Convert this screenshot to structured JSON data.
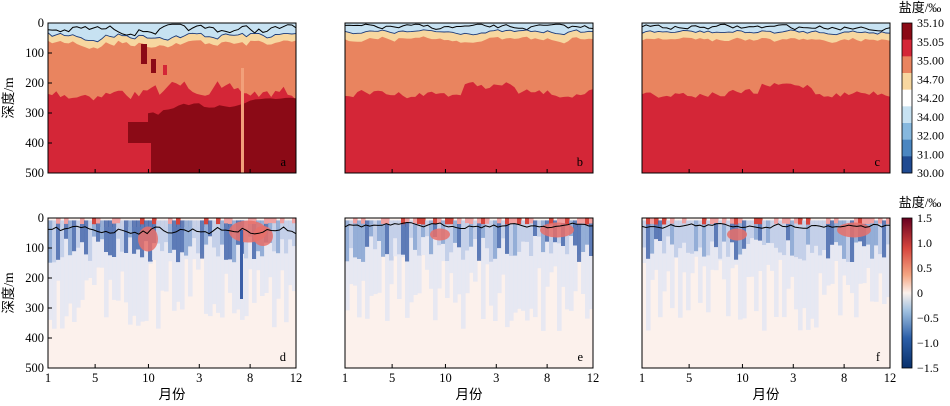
{
  "chart_data": [
    {
      "type": "heatmap",
      "panels": [
        "a",
        "b",
        "c"
      ],
      "ylabel": "深度/m",
      "yticks": [
        0,
        100,
        200,
        300,
        400,
        500
      ],
      "ylim": [
        500,
        0
      ],
      "colorbar": {
        "title": "盐度/‰",
        "ticks": [
          "35.10",
          "35.05",
          "35.00",
          "34.70",
          "34.20",
          "34.00",
          "32.00",
          "31.00",
          "30.00"
        ],
        "colors": [
          "#8b0a16",
          "#d42637",
          "#e9845f",
          "#f7d7a0",
          "#ffffff",
          "#c7e2f2",
          "#86b8de",
          "#4a86c1",
          "#1f4a91"
        ]
      }
    },
    {
      "type": "heatmap",
      "panels": [
        "d",
        "e",
        "f"
      ],
      "xlabel": "月份",
      "ylabel": "深度/m",
      "xticks": [
        "1",
        "5",
        "10",
        "3",
        "8",
        "12"
      ],
      "yticks": [
        0,
        100,
        200,
        300,
        400,
        500
      ],
      "ylim": [
        500,
        0
      ],
      "colorbar": {
        "title": "盐度/‰",
        "ticks": [
          1.5,
          1.0,
          0.5,
          0,
          -0.5,
          -1.0,
          -1.5
        ],
        "tick_labels": [
          "1.5",
          "1.0",
          "0.5",
          "0",
          "−0.5",
          "−1.0",
          "−1.5"
        ],
        "range": [
          -1.5,
          1.5
        ]
      }
    }
  ]
}
